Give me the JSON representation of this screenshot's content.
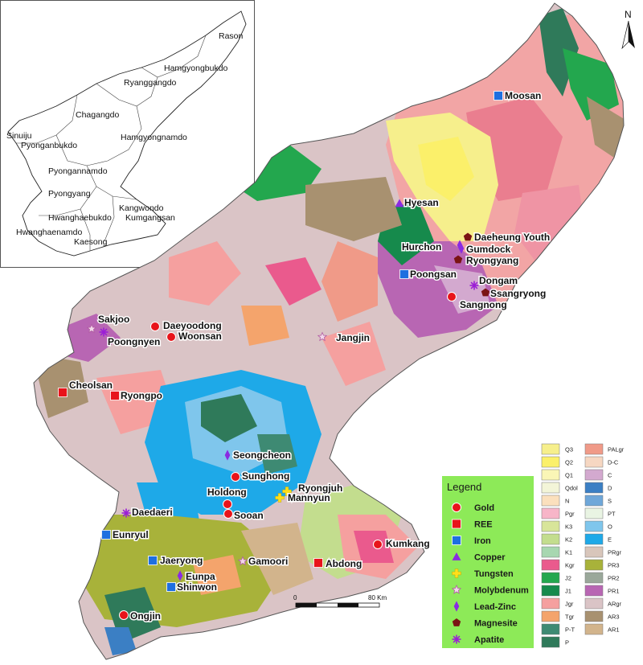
{
  "inset": {
    "labels": [
      {
        "text": "Rason"
      },
      {
        "text": "Hamgyongbukdo"
      },
      {
        "text": "Ryanggangdo"
      },
      {
        "text": "Chagangdo"
      },
      {
        "text": "Hamgyongnamdo"
      },
      {
        "text": "Sinuiju"
      },
      {
        "text": "Pyonganbukdo"
      },
      {
        "text": "Pyongannamdo"
      },
      {
        "text": "Pyongyang"
      },
      {
        "text": "Kangwondo"
      },
      {
        "text": "Hwanghaebukdo"
      },
      {
        "text": "Kumgangsan"
      },
      {
        "text": "Hwanghaenamdo"
      },
      {
        "text": "Kaesong"
      }
    ]
  },
  "north_arrow": {
    "label": "N"
  },
  "sites": [
    {
      "name": "Moosan",
      "mineral": "Iron"
    },
    {
      "name": "Hyesan",
      "mineral": "Copper"
    },
    {
      "name": "Daeheung Youth",
      "mineral": "Magnesite"
    },
    {
      "name": "Hurchon",
      "mineral": "Lead-Zinc"
    },
    {
      "name": "Gumdock",
      "mineral": "Lead-Zinc"
    },
    {
      "name": "Ryongyang",
      "mineral": "Magnesite"
    },
    {
      "name": "Poongsan",
      "mineral": "Iron"
    },
    {
      "name": "Dongam",
      "mineral": "Apatite"
    },
    {
      "name": "Ssangryong",
      "mineral": "Magnesite"
    },
    {
      "name": "Sangnong",
      "mineral": "Gold"
    },
    {
      "name": "Sakjoo",
      "mineral": "Molybdenum"
    },
    {
      "name": "Poongnyen",
      "mineral": "Apatite"
    },
    {
      "name": "Daeyoodong",
      "mineral": "Gold"
    },
    {
      "name": "Woonsan",
      "mineral": "Gold"
    },
    {
      "name": "Jangjin",
      "mineral": "Molybdenum"
    },
    {
      "name": "Cheolsan",
      "mineral": "REE"
    },
    {
      "name": "Ryongpo",
      "mineral": "REE"
    },
    {
      "name": "Seongcheon",
      "mineral": "Lead-Zinc"
    },
    {
      "name": "Sunghong",
      "mineral": "Gold"
    },
    {
      "name": "Ryongjuh",
      "mineral": "Tungsten"
    },
    {
      "name": "Mannyun",
      "mineral": "Tungsten"
    },
    {
      "name": "Holdong",
      "mineral": "Gold"
    },
    {
      "name": "Sooan",
      "mineral": "Gold"
    },
    {
      "name": "Daedaeri",
      "mineral": "Apatite"
    },
    {
      "name": "Eunryul",
      "mineral": "Iron"
    },
    {
      "name": "Kumkang",
      "mineral": "Gold"
    },
    {
      "name": "Jaeryong",
      "mineral": "Iron"
    },
    {
      "name": "Gamoori",
      "mineral": "Molybdenum"
    },
    {
      "name": "Abdong",
      "mineral": "REE"
    },
    {
      "name": "Eunpa",
      "mineral": "Lead-Zinc"
    },
    {
      "name": "Shinwon",
      "mineral": "Iron"
    },
    {
      "name": "Ongjin",
      "mineral": "Gold"
    }
  ],
  "legend": {
    "title": "Legend",
    "items": [
      {
        "label": "Gold",
        "symbol": "circle",
        "color": "#e8141b"
      },
      {
        "label": "REE",
        "symbol": "square",
        "color": "#e8141b"
      },
      {
        "label": "Iron",
        "symbol": "square",
        "color": "#1e6fe0"
      },
      {
        "label": "Copper",
        "symbol": "triangle",
        "color": "#8a2be2"
      },
      {
        "label": "Tungsten",
        "symbol": "cross",
        "color": "#ffe01a"
      },
      {
        "label": "Molybdenum",
        "symbol": "star",
        "color": "#f2d7ea"
      },
      {
        "label": "Lead-Zinc",
        "symbol": "diamond",
        "color": "#8a2be2"
      },
      {
        "label": "Magnesite",
        "symbol": "pentagon",
        "color": "#7a1414"
      },
      {
        "label": "Apatite",
        "symbol": "asterisk",
        "color": "#9b1fd6"
      }
    ]
  },
  "geology_legend": {
    "left": [
      {
        "code": "Q3",
        "color": "#f6ef8c"
      },
      {
        "code": "Q2",
        "color": "#fbf06a"
      },
      {
        "code": "Q1",
        "color": "#faf6b6"
      },
      {
        "code": "Qdol",
        "color": "#f3f5d8"
      },
      {
        "code": "N",
        "color": "#fbe0bd"
      },
      {
        "code": "Pgr",
        "color": "#f7b5c8"
      },
      {
        "code": "K3",
        "color": "#d8e59a"
      },
      {
        "code": "K2",
        "color": "#c3dd8e"
      },
      {
        "code": "K1",
        "color": "#a7d7b0"
      },
      {
        "code": "Kgr",
        "color": "#ea5a8d"
      },
      {
        "code": "J2",
        "color": "#23a74e"
      },
      {
        "code": "J1",
        "color": "#168a4c"
      },
      {
        "code": "Jgr",
        "color": "#f5a09f"
      },
      {
        "code": "Tgr",
        "color": "#f4a46c"
      },
      {
        "code": "P-T",
        "color": "#3e8a73"
      },
      {
        "code": "P",
        "color": "#2f7a5a"
      }
    ],
    "right": [
      {
        "code": "PALgr",
        "color": "#f09a88"
      },
      {
        "code": "D-C",
        "color": "#f6d7c2"
      },
      {
        "code": "C",
        "color": "#d3a9cf"
      },
      {
        "code": "D",
        "color": "#3b7fc4"
      },
      {
        "code": "S",
        "color": "#6fa7d9"
      },
      {
        "code": "PT",
        "color": "#e9f4e3"
      },
      {
        "code": "O",
        "color": "#7fc6ec"
      },
      {
        "code": "E",
        "color": "#1ea9e8"
      },
      {
        "code": "PRgr",
        "color": "#d8c6bb"
      },
      {
        "code": "PR3",
        "color": "#a8b23a"
      },
      {
        "code": "PR2",
        "color": "#9aa89a"
      },
      {
        "code": "PR1",
        "color": "#b866b3"
      },
      {
        "code": "ARgr",
        "color": "#dac4c6"
      },
      {
        "code": "AR3",
        "color": "#a89170"
      },
      {
        "code": "AR1",
        "color": "#d2b48c"
      }
    ]
  },
  "scale_bar": {
    "start_label": "0",
    "end_label": "80 Km"
  }
}
